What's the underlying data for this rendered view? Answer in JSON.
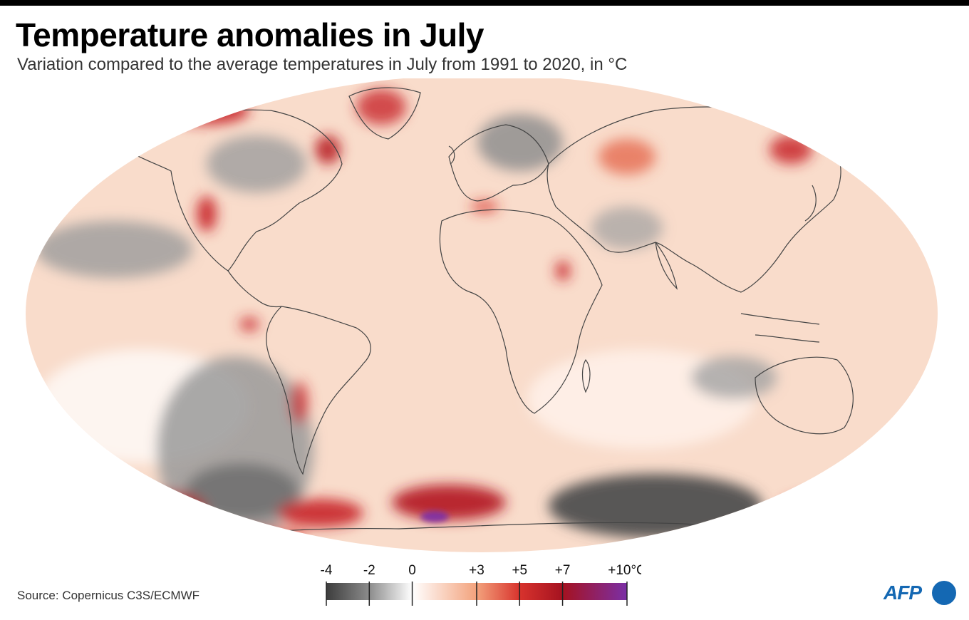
{
  "title": "Temperature anomalies in July",
  "subtitle": "Variation compared to the average temperatures in July from 1991 to 2020, in °C",
  "source": "Source: Copernicus C3S/ECMWF",
  "logo_text": "AFP",
  "legend": {
    "ticks": [
      {
        "value": -4,
        "label": "-4"
      },
      {
        "value": -2,
        "label": "-2"
      },
      {
        "value": 0,
        "label": "0"
      },
      {
        "value": 3,
        "label": "+3"
      },
      {
        "value": 5,
        "label": "+5"
      },
      {
        "value": 7,
        "label": "+7"
      },
      {
        "value": 10,
        "label": "+10°C"
      }
    ],
    "range": [
      -4,
      10
    ],
    "stops": [
      {
        "value": -4,
        "color": "#3d3d3d"
      },
      {
        "value": -2,
        "color": "#8c8c8c"
      },
      {
        "value": 0,
        "color": "#ffffff"
      },
      {
        "value": 3,
        "color": "#f3a27c"
      },
      {
        "value": 5,
        "color": "#d8332d"
      },
      {
        "value": 7,
        "color": "#a51220"
      },
      {
        "value": 10,
        "color": "#7b2fa6"
      }
    ]
  },
  "colors": {
    "ocean_base": "#f9d9c6",
    "land_outline": "#444444",
    "cold": "#8c8c8c",
    "very_cold": "#4a4a4a",
    "warm": "#f3a27c",
    "hot": "#d8332d",
    "extreme": "#7b2fa6",
    "logo_blue": "#1468b3"
  }
}
